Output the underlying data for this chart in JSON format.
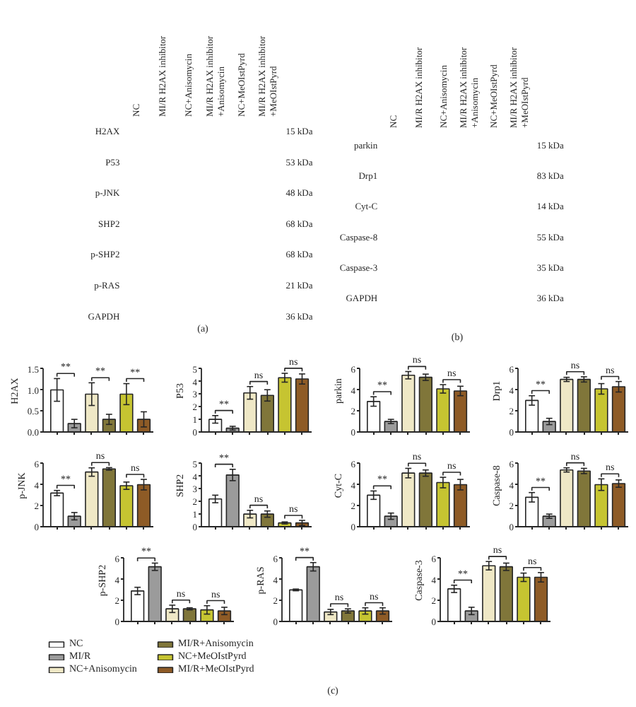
{
  "chart_data": [
    {
      "type": "other",
      "categories": [
        "NC",
        "MI/R H2AX inhibitor",
        "NC+Anisomycin",
        "MI/R H2AX inhibitor\n+Anisomycin",
        "NC+MeOIstPyrd",
        "MI/R H2AX inhibitor\n+MeOIstPyrd"
      ],
      "y_categories": [
        "H2AX",
        "P53",
        "p-JNK",
        "SHP2",
        "p-SHP2",
        "p-RAS",
        "GAPDH"
      ],
      "y2_categories": [
        "15 kDa",
        "53 kDa",
        "48 kDa",
        "68 kDa",
        "68 kDa",
        "21 kDa",
        "36 kDa"
      ],
      "annotations": [
        "(a)"
      ]
    },
    {
      "type": "other",
      "categories": [
        "NC",
        "MI/R H2AX inhibitor",
        "NC+Anisomycin",
        "MI/R H2AX inhibitor\n+Anisomycin",
        "NC+MeOIstPyrd",
        "MI/R H2AX inhibitor\n+MeOIstPyrd"
      ],
      "y_categories": [
        "parkin",
        "Drp1",
        "Cyt-C",
        "Caspase-8",
        "Caspase-3",
        "GAPDH"
      ],
      "y2_categories": [
        "15 kDa",
        "83 kDa",
        "14 kDa",
        "55 kDa",
        "35 kDa",
        "36 kDa"
      ],
      "annotations": [
        "(b)"
      ]
    },
    {
      "type": "bar",
      "ylabel": "H2AX",
      "categories": [
        null
      ],
      "ylim": [
        0,
        1.5
      ],
      "yticks": [
        {
          "value": 0,
          "label": "0.0"
        },
        {
          "value": 0.5,
          "label": "0.5"
        },
        {
          "value": 1,
          "label": "1.0"
        },
        {
          "value": 1.5,
          "label": "1.5"
        }
      ],
      "annotations": [
        "**",
        "**",
        "**"
      ],
      "series": [
        {
          "color": "#ffffff",
          "values": [
            1.0
          ],
          "errors": [
            0.27
          ]
        },
        {
          "color": "#9b9b9b",
          "values": [
            0.2
          ],
          "errors": [
            0.1
          ]
        },
        {
          "color": "#efe8c6",
          "values": [
            0.9
          ],
          "errors": [
            0.27
          ]
        },
        {
          "color": "#80763a",
          "values": [
            0.3
          ],
          "errors": [
            0.12
          ]
        },
        {
          "color": "#c6c431",
          "values": [
            0.9
          ],
          "errors": [
            0.25
          ]
        },
        {
          "color": "#8e5b26",
          "values": [
            0.3
          ],
          "errors": [
            0.18
          ]
        }
      ]
    },
    {
      "type": "bar",
      "ylabel": "P53",
      "categories": [
        null
      ],
      "ylim": [
        0,
        5
      ],
      "yticks": [
        0,
        1,
        2,
        3,
        4,
        5
      ],
      "annotations": [
        "**",
        "ns",
        "ns"
      ],
      "series": [
        {
          "color": "#ffffff",
          "values": [
            1.0
          ],
          "errors": [
            0.3
          ]
        },
        {
          "color": "#9b9b9b",
          "values": [
            0.3
          ],
          "errors": [
            0.15
          ]
        },
        {
          "color": "#efe8c6",
          "values": [
            3.1
          ],
          "errors": [
            0.5
          ]
        },
        {
          "color": "#80763a",
          "values": [
            2.9
          ],
          "errors": [
            0.45
          ]
        },
        {
          "color": "#c6c431",
          "values": [
            4.3
          ],
          "errors": [
            0.35
          ]
        },
        {
          "color": "#8e5b26",
          "values": [
            4.2
          ],
          "errors": [
            0.4
          ]
        }
      ]
    },
    {
      "type": "bar",
      "ylabel": "parkin",
      "categories": [
        null
      ],
      "ylim": [
        0,
        6
      ],
      "yticks": [
        0,
        2,
        4,
        6
      ],
      "annotations": [
        "**",
        "ns",
        "ns"
      ],
      "series": [
        {
          "color": "#ffffff",
          "values": [
            2.9
          ],
          "errors": [
            0.45
          ]
        },
        {
          "color": "#9b9b9b",
          "values": [
            1.0
          ],
          "errors": [
            0.2
          ]
        },
        {
          "color": "#efe8c6",
          "values": [
            5.4
          ],
          "errors": [
            0.35
          ]
        },
        {
          "color": "#80763a",
          "values": [
            5.2
          ],
          "errors": [
            0.3
          ]
        },
        {
          "color": "#c6c431",
          "values": [
            4.1
          ],
          "errors": [
            0.4
          ]
        },
        {
          "color": "#8e5b26",
          "values": [
            3.9
          ],
          "errors": [
            0.45
          ]
        }
      ]
    },
    {
      "type": "bar",
      "ylabel": "Drp1",
      "categories": [
        null
      ],
      "ylim": [
        0,
        6
      ],
      "yticks": [
        0,
        2,
        4,
        6
      ],
      "annotations": [
        "**",
        "ns",
        "ns"
      ],
      "series": [
        {
          "color": "#ffffff",
          "values": [
            3.0
          ],
          "errors": [
            0.45
          ]
        },
        {
          "color": "#9b9b9b",
          "values": [
            1.0
          ],
          "errors": [
            0.3
          ]
        },
        {
          "color": "#efe8c6",
          "values": [
            5.0
          ],
          "errors": [
            0.2
          ]
        },
        {
          "color": "#80763a",
          "values": [
            5.0
          ],
          "errors": [
            0.25
          ]
        },
        {
          "color": "#c6c431",
          "values": [
            4.1
          ],
          "errors": [
            0.5
          ]
        },
        {
          "color": "#8e5b26",
          "values": [
            4.3
          ],
          "errors": [
            0.5
          ]
        }
      ]
    },
    {
      "type": "bar",
      "ylabel": "p-JNK",
      "categories": [
        null
      ],
      "ylim": [
        0,
        6
      ],
      "yticks": [
        0,
        2,
        4,
        6
      ],
      "annotations": [
        "**",
        "ns",
        "ns"
      ],
      "series": [
        {
          "color": "#ffffff",
          "values": [
            3.2
          ],
          "errors": [
            0.25
          ]
        },
        {
          "color": "#9b9b9b",
          "values": [
            1.0
          ],
          "errors": [
            0.35
          ]
        },
        {
          "color": "#efe8c6",
          "values": [
            5.2
          ],
          "errors": [
            0.4
          ]
        },
        {
          "color": "#80763a",
          "values": [
            5.5
          ],
          "errors": [
            0.12
          ]
        },
        {
          "color": "#c6c431",
          "values": [
            3.9
          ],
          "errors": [
            0.35
          ]
        },
        {
          "color": "#8e5b26",
          "values": [
            4.0
          ],
          "errors": [
            0.5
          ]
        }
      ]
    },
    {
      "type": "bar",
      "ylabel": "SHP2",
      "categories": [
        null
      ],
      "ylim": [
        0,
        5
      ],
      "yticks": [
        0,
        1,
        2,
        3,
        4,
        5
      ],
      "annotations": [
        "**",
        "ns",
        "ns"
      ],
      "series": [
        {
          "color": "#ffffff",
          "values": [
            2.2
          ],
          "errors": [
            0.3
          ]
        },
        {
          "color": "#9b9b9b",
          "values": [
            4.1
          ],
          "errors": [
            0.45
          ]
        },
        {
          "color": "#efe8c6",
          "values": [
            1.0
          ],
          "errors": [
            0.3
          ]
        },
        {
          "color": "#80763a",
          "values": [
            1.0
          ],
          "errors": [
            0.25
          ]
        },
        {
          "color": "#c6c431",
          "values": [
            0.3
          ],
          "errors": [
            0.08
          ]
        },
        {
          "color": "#8e5b26",
          "values": [
            0.3
          ],
          "errors": [
            0.2
          ]
        }
      ]
    },
    {
      "type": "bar",
      "ylabel": "Cyt-C",
      "categories": [
        null
      ],
      "ylim": [
        0,
        6
      ],
      "yticks": [
        0,
        2,
        4,
        6
      ],
      "annotations": [
        "**",
        "ns",
        "ns"
      ],
      "series": [
        {
          "color": "#ffffff",
          "values": [
            3.0
          ],
          "errors": [
            0.4
          ]
        },
        {
          "color": "#9b9b9b",
          "values": [
            1.0
          ],
          "errors": [
            0.3
          ]
        },
        {
          "color": "#efe8c6",
          "values": [
            5.1
          ],
          "errors": [
            0.45
          ]
        },
        {
          "color": "#80763a",
          "values": [
            5.1
          ],
          "errors": [
            0.3
          ]
        },
        {
          "color": "#c6c431",
          "values": [
            4.2
          ],
          "errors": [
            0.5
          ]
        },
        {
          "color": "#8e5b26",
          "values": [
            4.0
          ],
          "errors": [
            0.5
          ]
        }
      ]
    },
    {
      "type": "bar",
      "ylabel": "Caspase-8",
      "categories": [
        null
      ],
      "ylim": [
        0,
        6
      ],
      "yticks": [
        0,
        2,
        4,
        6
      ],
      "annotations": [
        "**",
        "ns",
        "ns"
      ],
      "series": [
        {
          "color": "#ffffff",
          "values": [
            2.8
          ],
          "errors": [
            0.45
          ]
        },
        {
          "color": "#9b9b9b",
          "values": [
            1.0
          ],
          "errors": [
            0.2
          ]
        },
        {
          "color": "#efe8c6",
          "values": [
            5.4
          ],
          "errors": [
            0.2
          ]
        },
        {
          "color": "#80763a",
          "values": [
            5.3
          ],
          "errors": [
            0.25
          ]
        },
        {
          "color": "#c6c431",
          "values": [
            4.0
          ],
          "errors": [
            0.55
          ]
        },
        {
          "color": "#8e5b26",
          "values": [
            4.1
          ],
          "errors": [
            0.35
          ]
        }
      ]
    },
    {
      "type": "bar",
      "ylabel": "p-SHP2",
      "categories": [
        null
      ],
      "ylim": [
        0,
        6
      ],
      "yticks": [
        0,
        2,
        4,
        6
      ],
      "annotations": [
        "**",
        "ns",
        "ns"
      ],
      "legend": "bottom",
      "series": [
        {
          "name": "NC",
          "color": "#ffffff",
          "values": [
            2.9
          ],
          "errors": [
            0.35
          ]
        },
        {
          "name": "MI/R",
          "color": "#9b9b9b",
          "values": [
            5.2
          ],
          "errors": [
            0.35
          ]
        },
        {
          "name": "NC+Anisomycin",
          "color": "#efe8c6",
          "values": [
            1.2
          ],
          "errors": [
            0.35
          ]
        },
        {
          "name": "MI/R+Anisomycin",
          "color": "#80763a",
          "values": [
            1.2
          ],
          "errors": [
            0.1
          ]
        },
        {
          "name": "NC+MeOIstPyrd",
          "color": "#c6c431",
          "values": [
            1.1
          ],
          "errors": [
            0.4
          ]
        },
        {
          "name": "MI/R+MeOIstPyrd",
          "color": "#8e5b26",
          "values": [
            1.0
          ],
          "errors": [
            0.35
          ]
        }
      ]
    },
    {
      "type": "bar",
      "ylabel": "p-RAS",
      "categories": [
        null
      ],
      "ylim": [
        0,
        6
      ],
      "yticks": [
        0,
        2,
        4,
        6
      ],
      "annotations": [
        "**",
        "ns",
        "ns"
      ],
      "series": [
        {
          "color": "#ffffff",
          "values": [
            3.0
          ],
          "errors": [
            0.08
          ]
        },
        {
          "color": "#9b9b9b",
          "values": [
            5.2
          ],
          "errors": [
            0.4
          ]
        },
        {
          "color": "#efe8c6",
          "values": [
            0.9
          ],
          "errors": [
            0.25
          ]
        },
        {
          "color": "#80763a",
          "values": [
            1.0
          ],
          "errors": [
            0.2
          ]
        },
        {
          "color": "#c6c431",
          "values": [
            1.0
          ],
          "errors": [
            0.3
          ]
        },
        {
          "color": "#8e5b26",
          "values": [
            1.0
          ],
          "errors": [
            0.3
          ]
        }
      ]
    },
    {
      "type": "bar",
      "ylabel": "Caspase-3",
      "categories": [
        null
      ],
      "ylim": [
        0,
        6
      ],
      "yticks": [
        0,
        2,
        4,
        6
      ],
      "annotations": [
        "**",
        "ns",
        "ns"
      ],
      "series": [
        {
          "color": "#ffffff",
          "values": [
            3.1
          ],
          "errors": [
            0.35
          ]
        },
        {
          "color": "#9b9b9b",
          "values": [
            1.0
          ],
          "errors": [
            0.35
          ]
        },
        {
          "color": "#efe8c6",
          "values": [
            5.3
          ],
          "errors": [
            0.4
          ]
        },
        {
          "color": "#80763a",
          "values": [
            5.2
          ],
          "errors": [
            0.35
          ]
        },
        {
          "color": "#c6c431",
          "values": [
            4.2
          ],
          "errors": [
            0.4
          ]
        },
        {
          "color": "#8e5b26",
          "values": [
            4.2
          ],
          "errors": [
            0.45
          ]
        }
      ]
    },
    {
      "type": "other",
      "annotations": [
        "(c)"
      ]
    }
  ]
}
